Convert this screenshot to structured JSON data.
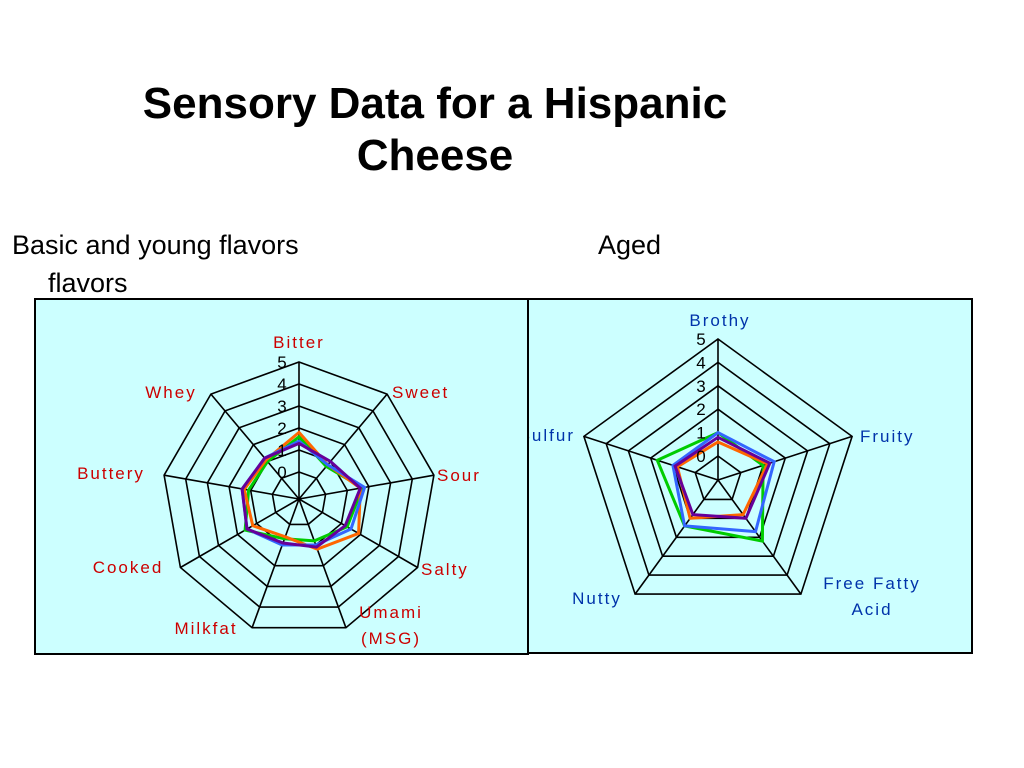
{
  "title_line1": "Sensory Data for a Hispanic",
  "title_line2": "Cheese",
  "subtitle_left": "Basic  and young flavors",
  "subtitle_right": "Aged",
  "subtitle_wrap": "flavors",
  "chart_data": [
    {
      "type": "radar",
      "categories": [
        "Bitter",
        "Sweet",
        "Sour",
        "Salty",
        "Umami\n(MSG)",
        "Milkfat",
        "Cooked",
        "Buttery",
        "Whey"
      ],
      "ticks": [
        "0",
        "1",
        "2",
        "3",
        "4",
        "5"
      ],
      "rmax": 5,
      "label_color": "#cc0000",
      "grid": true,
      "series": [
        {
          "color": "#00cc00",
          "values": [
            1.6,
            0.7,
            1.7,
            1.3,
            0.8,
            0.7,
            1.6,
            1.1,
            1.0
          ]
        },
        {
          "color": "#ff6600",
          "values": [
            1.8,
            0.8,
            1.6,
            1.9,
            1.2,
            0.6,
            1.2,
            1.3,
            1.1
          ]
        },
        {
          "color": "#3366ff",
          "values": [
            1.4,
            0.8,
            1.8,
            1.5,
            1.0,
            1.0,
            1.5,
            1.4,
            1.2
          ]
        },
        {
          "color": "#660099",
          "values": [
            1.3,
            1.0,
            1.6,
            1.2,
            1.1,
            0.9,
            1.5,
            1.4,
            1.2
          ]
        }
      ]
    },
    {
      "type": "radar",
      "categories": [
        "Brothy",
        "Fruity",
        "Free Fatty\nAcid",
        "Nutty",
        "Sulfur"
      ],
      "ticks": [
        "0",
        "1",
        "2",
        "3",
        "4",
        "5"
      ],
      "rmax": 5,
      "label_color": "#0033aa",
      "grid": true,
      "series": [
        {
          "color": "#00cc00",
          "values": [
            1.0,
            1.0,
            2.2,
            1.4,
            1.7
          ]
        },
        {
          "color": "#ff6600",
          "values": [
            0.6,
            1.2,
            0.8,
            1.0,
            0.8
          ]
        },
        {
          "color": "#3366ff",
          "values": [
            1.0,
            1.5,
            1.7,
            1.4,
            1.0
          ]
        },
        {
          "color": "#660099",
          "values": [
            0.8,
            1.3,
            1.0,
            0.8,
            0.9
          ]
        }
      ]
    }
  ]
}
